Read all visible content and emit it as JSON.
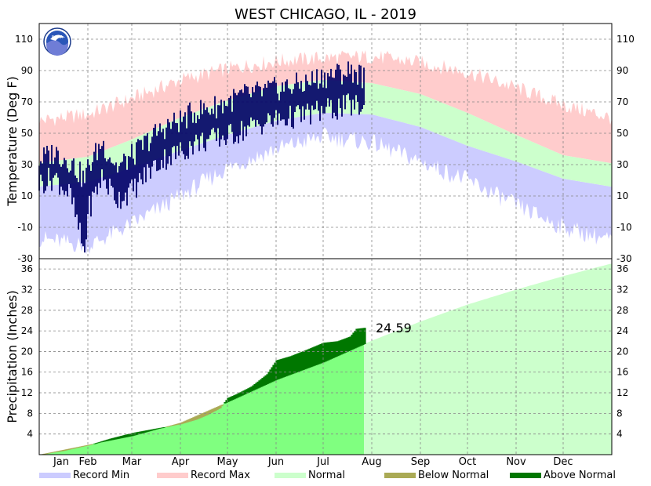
{
  "chart_data": {
    "type": "area",
    "title": "WEST CHICAGO, IL - 2019",
    "months": [
      "Jan",
      "Feb",
      "Mar",
      "Apr",
      "May",
      "Jun",
      "Jul",
      "Aug",
      "Sep",
      "Oct",
      "Nov",
      "Dec"
    ],
    "temperature": {
      "ylabel": "Temperature (Deg F)",
      "ylim": [
        -30,
        120
      ],
      "ticks": [
        110,
        90,
        70,
        50,
        30,
        10,
        -10,
        -30
      ],
      "record_max_anchors": [
        [
          0,
          58
        ],
        [
          31,
          62
        ],
        [
          59,
          72
        ],
        [
          90,
          84
        ],
        [
          120,
          91
        ],
        [
          151,
          96
        ],
        [
          181,
          98
        ],
        [
          212,
          99
        ],
        [
          243,
          95
        ],
        [
          273,
          89
        ],
        [
          304,
          79
        ],
        [
          334,
          68
        ],
        [
          364,
          60
        ]
      ],
      "normal_high_anchors": [
        [
          0,
          31
        ],
        [
          31,
          35
        ],
        [
          59,
          46
        ],
        [
          90,
          60
        ],
        [
          120,
          71
        ],
        [
          151,
          80
        ],
        [
          181,
          84
        ],
        [
          212,
          82
        ],
        [
          243,
          75
        ],
        [
          273,
          63
        ],
        [
          304,
          49
        ],
        [
          334,
          36
        ],
        [
          364,
          31
        ]
      ],
      "normal_low_anchors": [
        [
          0,
          16
        ],
        [
          31,
          19
        ],
        [
          59,
          28
        ],
        [
          90,
          39
        ],
        [
          120,
          49
        ],
        [
          151,
          58
        ],
        [
          181,
          63
        ],
        [
          212,
          62
        ],
        [
          243,
          54
        ],
        [
          273,
          42
        ],
        [
          304,
          32
        ],
        [
          334,
          21
        ],
        [
          364,
          16
        ]
      ],
      "record_min_anchors": [
        [
          0,
          -17
        ],
        [
          31,
          -22
        ],
        [
          59,
          -8
        ],
        [
          90,
          10
        ],
        [
          120,
          28
        ],
        [
          151,
          40
        ],
        [
          181,
          48
        ],
        [
          212,
          44
        ],
        [
          243,
          32
        ],
        [
          273,
          20
        ],
        [
          304,
          4
        ],
        [
          334,
          -10
        ],
        [
          364,
          -18
        ]
      ],
      "observed_high_anchors": [
        [
          0,
          33
        ],
        [
          10,
          38
        ],
        [
          20,
          32
        ],
        [
          29,
          20
        ],
        [
          31,
          28
        ],
        [
          40,
          44
        ],
        [
          50,
          28
        ],
        [
          60,
          36
        ],
        [
          70,
          46
        ],
        [
          80,
          54
        ],
        [
          90,
          58
        ],
        [
          100,
          64
        ],
        [
          110,
          66
        ],
        [
          120,
          70
        ],
        [
          130,
          74
        ],
        [
          140,
          76
        ],
        [
          150,
          78
        ],
        [
          160,
          80
        ],
        [
          170,
          82
        ],
        [
          180,
          86
        ],
        [
          190,
          88
        ],
        [
          200,
          90
        ],
        [
          207,
          86
        ]
      ],
      "observed_low_anchors": [
        [
          0,
          18
        ],
        [
          10,
          22
        ],
        [
          20,
          10
        ],
        [
          29,
          -27
        ],
        [
          31,
          0
        ],
        [
          40,
          22
        ],
        [
          50,
          8
        ],
        [
          60,
          14
        ],
        [
          70,
          26
        ],
        [
          80,
          34
        ],
        [
          90,
          38
        ],
        [
          100,
          44
        ],
        [
          110,
          46
        ],
        [
          120,
          48
        ],
        [
          130,
          52
        ],
        [
          140,
          56
        ],
        [
          150,
          58
        ],
        [
          160,
          60
        ],
        [
          170,
          62
        ],
        [
          180,
          64
        ],
        [
          190,
          66
        ],
        [
          200,
          68
        ],
        [
          207,
          66
        ]
      ]
    },
    "precipitation": {
      "ylabel": "Precipitation (Inches)",
      "ylim": [
        0,
        38
      ],
      "ticks": [
        36,
        32,
        28,
        24,
        20,
        16,
        12,
        8,
        4
      ],
      "normal_cumulative_anchors": [
        [
          0,
          0
        ],
        [
          31,
          1.9
        ],
        [
          59,
          3.6
        ],
        [
          90,
          6.2
        ],
        [
          120,
          10.2
        ],
        [
          151,
          14.5
        ],
        [
          181,
          17.9
        ],
        [
          212,
          22.1
        ],
        [
          243,
          25.8
        ],
        [
          273,
          29.1
        ],
        [
          304,
          32.0
        ],
        [
          334,
          34.6
        ],
        [
          364,
          37.0
        ]
      ],
      "observed_cumulative_anchors": [
        [
          0,
          0
        ],
        [
          15,
          0.7
        ],
        [
          31,
          1.8
        ],
        [
          45,
          3.1
        ],
        [
          59,
          4.2
        ],
        [
          75,
          5.1
        ],
        [
          90,
          5.9
        ],
        [
          100,
          6.8
        ],
        [
          107,
          7.7
        ],
        [
          115,
          9.0
        ],
        [
          120,
          11.0
        ],
        [
          126,
          11.8
        ],
        [
          135,
          13.2
        ],
        [
          145,
          15.6
        ],
        [
          151,
          18.3
        ],
        [
          160,
          19.1
        ],
        [
          170,
          20.3
        ],
        [
          181,
          21.7
        ],
        [
          190,
          22.0
        ],
        [
          198,
          22.9
        ],
        [
          202,
          24.4
        ],
        [
          207,
          24.59
        ]
      ],
      "ytd_label": "24.59"
    },
    "legend": [
      {
        "label": "Record Min",
        "color": "#ccccff"
      },
      {
        "label": "Record Max",
        "color": "#ffcccc"
      },
      {
        "label": "Normal",
        "color": "#ccffcc"
      },
      {
        "label": "Below Normal",
        "color": "#aaaa55"
      },
      {
        "label": "Above Normal",
        "color": "#007700"
      }
    ],
    "colors": {
      "observed_temp": "#000066",
      "precip_normal_ytd": "#80ff80",
      "precip_normal_future": "#ccffcc",
      "normal_band": "#ccffcc",
      "record_max": "#ffcccc",
      "record_min": "#ccccff"
    },
    "logo_text": "NOAA"
  }
}
